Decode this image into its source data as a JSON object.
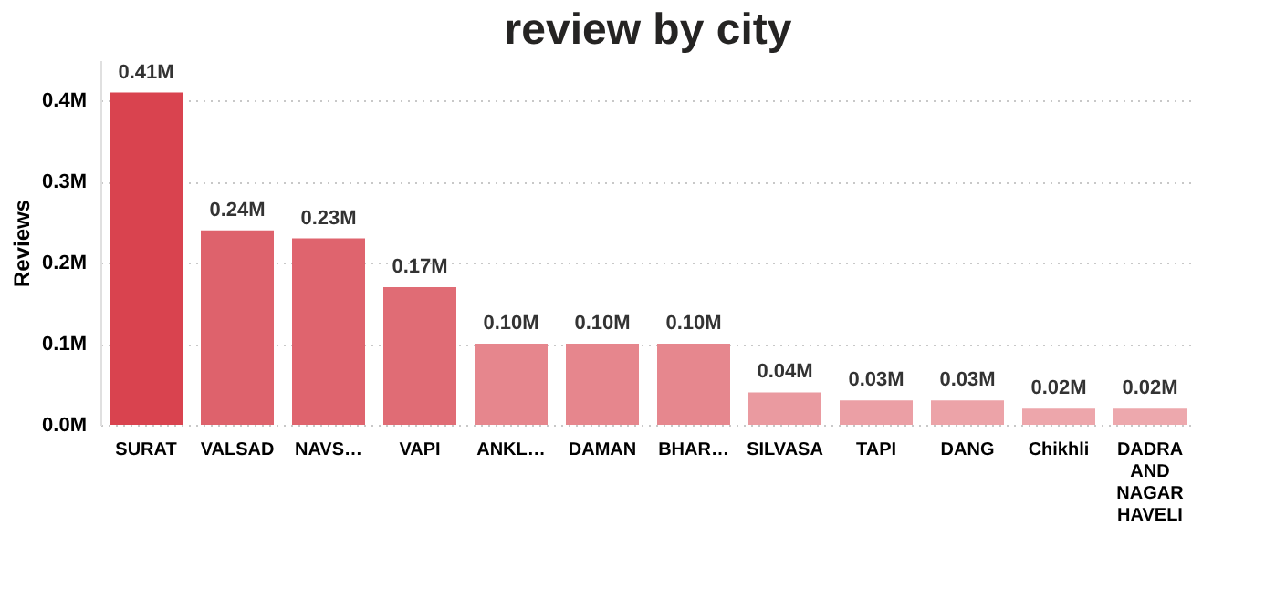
{
  "chart_data": {
    "type": "bar",
    "title": "review by city",
    "ylabel": "Reviews",
    "categories": [
      "SURAT",
      "VALSAD",
      "NAVS…",
      "VAPI",
      "ANKL…",
      "DAMAN",
      "BHAR…",
      "SILVASA",
      "TAPI",
      "DANG",
      "Chikhli",
      "DADRA AND NAGAR HAVELI"
    ],
    "values": [
      0.41,
      0.24,
      0.23,
      0.17,
      0.1,
      0.1,
      0.1,
      0.04,
      0.03,
      0.03,
      0.02,
      0.02
    ],
    "value_labels": [
      "0.41M",
      "0.24M",
      "0.23M",
      "0.17M",
      "0.10M",
      "0.10M",
      "0.10M",
      "0.04M",
      "0.03M",
      "0.03M",
      "0.02M",
      "0.02M"
    ],
    "colors": [
      "#d9434f",
      "#de626c",
      "#df646e",
      "#e06c75",
      "#e6868d",
      "#e6868d",
      "#e6878e",
      "#ea9aa0",
      "#eb9fa5",
      "#eca3a8",
      "#eda6ab",
      "#eda8ad"
    ],
    "ylim": [
      0,
      0.45
    ],
    "yticks": [
      {
        "value": 0,
        "label": "0.0M"
      },
      {
        "value": 0.1,
        "label": "0.1M"
      },
      {
        "value": 0.2,
        "label": "0.2M"
      },
      {
        "value": 0.3,
        "label": "0.3M"
      },
      {
        "value": 0.4,
        "label": "0.4M"
      }
    ],
    "grid": "y"
  }
}
